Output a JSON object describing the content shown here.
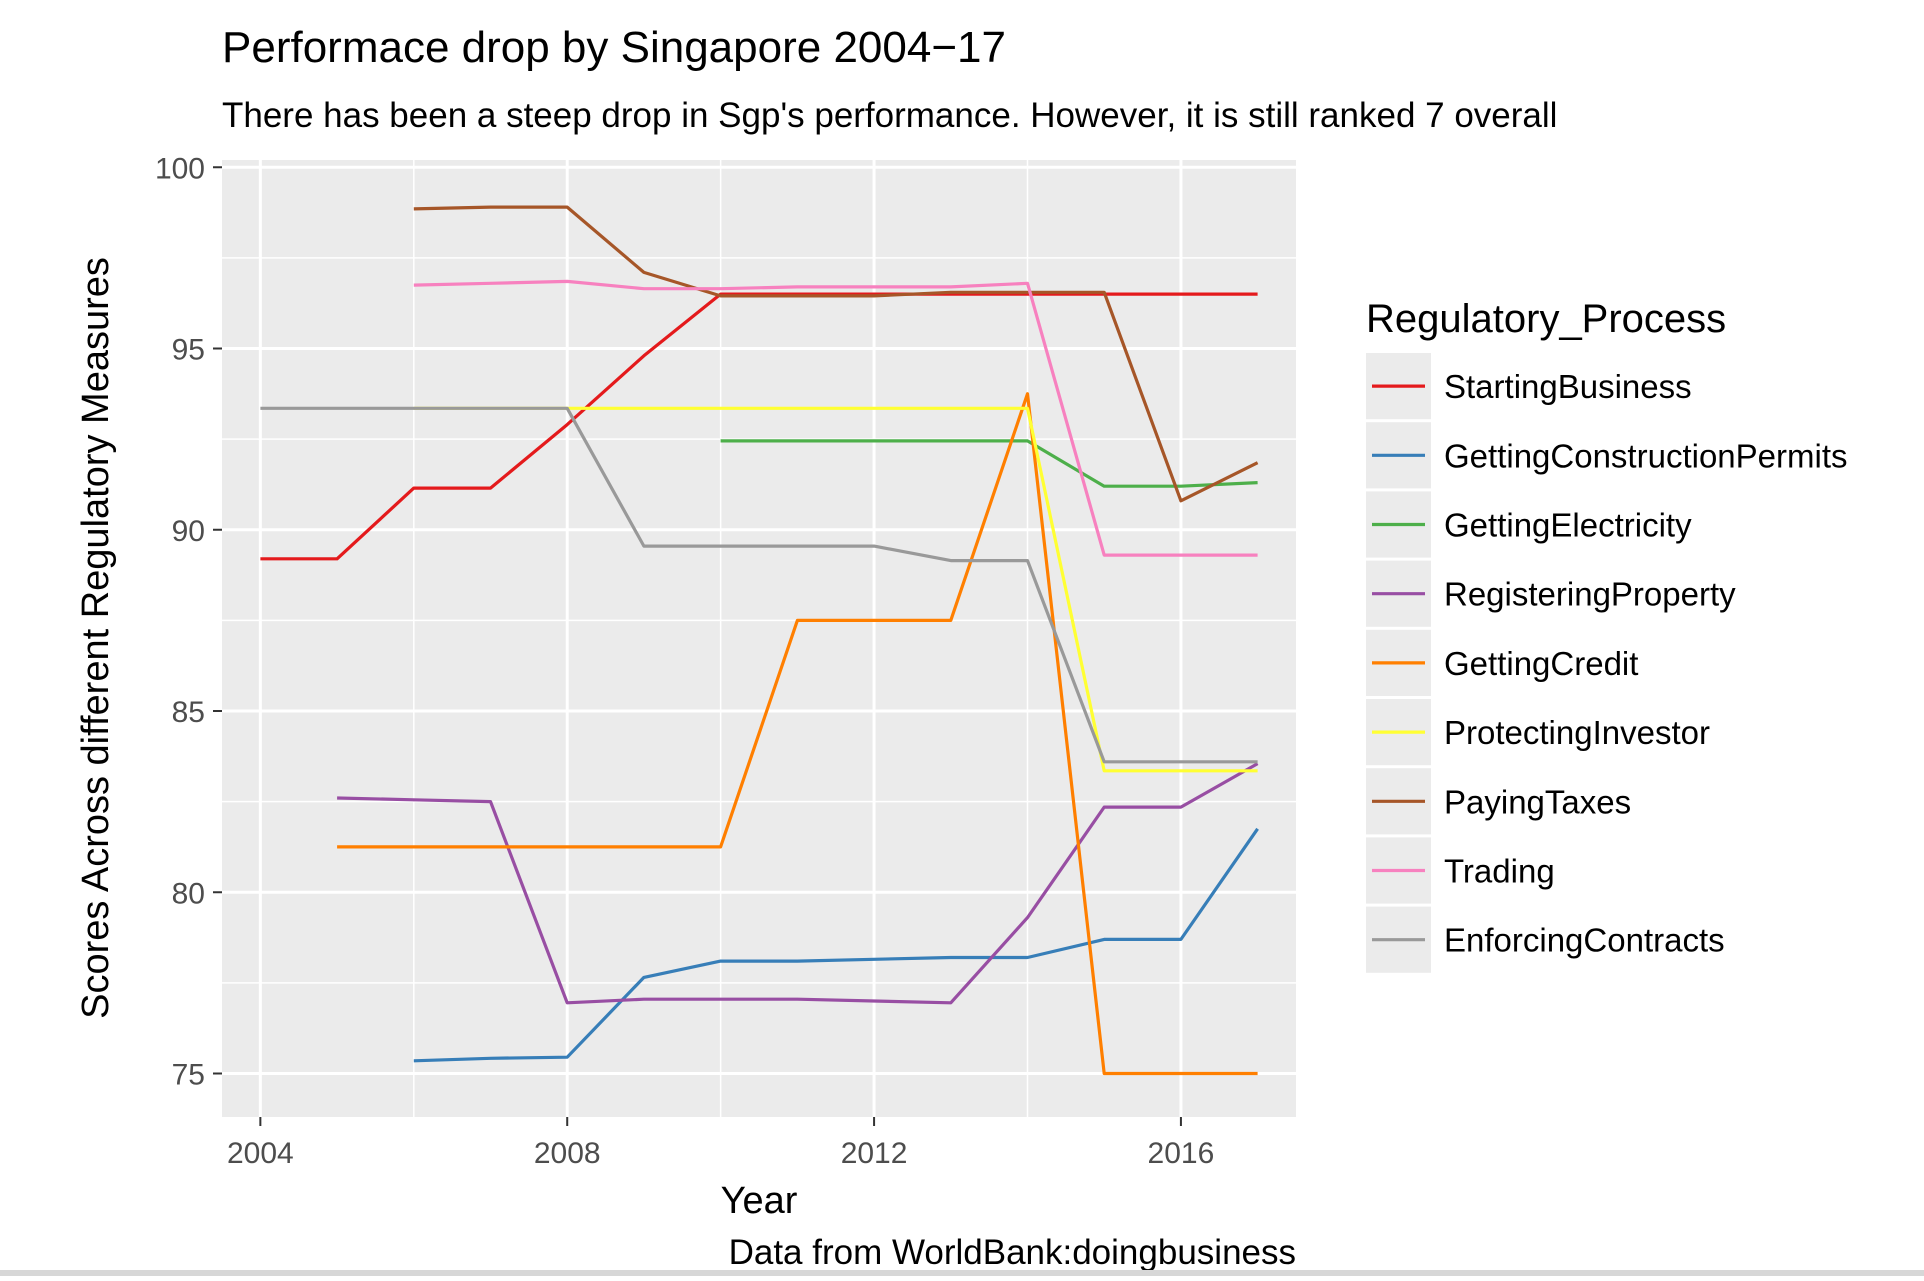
{
  "chart_data": {
    "type": "line",
    "title": "Performace drop by Singapore 2004−17",
    "subtitle": "There has been a steep drop in Sgp's performance. However, it is still ranked 7 overall",
    "xlabel": "Year",
    "ylabel": "Scores Across different Regulatory Measures",
    "caption": "Data from WorldBank:doingbusiness",
    "legend_title": "Regulatory_Process",
    "legend_position": "right",
    "grid": true,
    "xlim": [
      2003.5,
      2017.5
    ],
    "ylim": [
      73.8,
      100.2
    ],
    "xticks": [
      2004,
      2008,
      2012,
      2016
    ],
    "xtick_labels": [
      "2004",
      "2008",
      "2012",
      "2016"
    ],
    "yticks": [
      75,
      80,
      85,
      90,
      95,
      100
    ],
    "ytick_labels": [
      "75",
      "80",
      "85",
      "90",
      "95",
      "100"
    ],
    "series": [
      {
        "name": "StartingBusiness",
        "color": "#e41a1c",
        "points": [
          [
            2004,
            89.2
          ],
          [
            2005,
            89.2
          ],
          [
            2006,
            91.15
          ],
          [
            2007,
            91.15
          ],
          [
            2008,
            92.9
          ],
          [
            2009,
            94.8
          ],
          [
            2010,
            96.5
          ],
          [
            2011,
            96.5
          ],
          [
            2012,
            96.5
          ],
          [
            2013,
            96.5
          ],
          [
            2014,
            96.5
          ],
          [
            2015,
            96.5
          ],
          [
            2016,
            96.5
          ],
          [
            2017,
            96.5
          ]
        ]
      },
      {
        "name": "GettingConstructionPermits",
        "color": "#377eb8",
        "points": [
          [
            2006,
            75.35
          ],
          [
            2007,
            75.42
          ],
          [
            2008,
            75.45
          ],
          [
            2009,
            77.65
          ],
          [
            2010,
            78.1
          ],
          [
            2011,
            78.1
          ],
          [
            2012,
            78.15
          ],
          [
            2013,
            78.2
          ],
          [
            2014,
            78.2
          ],
          [
            2015,
            78.7
          ],
          [
            2016,
            78.7
          ],
          [
            2017,
            81.75
          ]
        ]
      },
      {
        "name": "GettingElectricity",
        "color": "#4daf4a",
        "points": [
          [
            2010,
            92.45
          ],
          [
            2011,
            92.45
          ],
          [
            2012,
            92.45
          ],
          [
            2013,
            92.45
          ],
          [
            2014,
            92.45
          ],
          [
            2015,
            91.2
          ],
          [
            2016,
            91.2
          ],
          [
            2017,
            91.3
          ]
        ]
      },
      {
        "name": "RegisteringProperty",
        "color": "#984ea3",
        "points": [
          [
            2005,
            82.6
          ],
          [
            2006,
            82.55
          ],
          [
            2007,
            82.5
          ],
          [
            2008,
            76.95
          ],
          [
            2009,
            77.05
          ],
          [
            2010,
            77.05
          ],
          [
            2011,
            77.05
          ],
          [
            2012,
            77.0
          ],
          [
            2013,
            76.95
          ],
          [
            2014,
            79.3
          ],
          [
            2015,
            82.35
          ],
          [
            2016,
            82.35
          ],
          [
            2017,
            83.55
          ]
        ]
      },
      {
        "name": "GettingCredit",
        "color": "#ff7f00",
        "points": [
          [
            2005,
            81.25
          ],
          [
            2006,
            81.25
          ],
          [
            2007,
            81.25
          ],
          [
            2008,
            81.25
          ],
          [
            2009,
            81.25
          ],
          [
            2010,
            81.25
          ],
          [
            2011,
            87.5
          ],
          [
            2012,
            87.5
          ],
          [
            2013,
            87.5
          ],
          [
            2014,
            93.75
          ],
          [
            2015,
            75.0
          ],
          [
            2016,
            75.0
          ],
          [
            2017,
            75.0
          ]
        ]
      },
      {
        "name": "ProtectingInvestor",
        "color": "#ffff33",
        "points": [
          [
            2006,
            93.35
          ],
          [
            2007,
            93.35
          ],
          [
            2008,
            93.35
          ],
          [
            2009,
            93.35
          ],
          [
            2010,
            93.35
          ],
          [
            2011,
            93.35
          ],
          [
            2012,
            93.35
          ],
          [
            2013,
            93.35
          ],
          [
            2014,
            93.35
          ],
          [
            2015,
            83.35
          ],
          [
            2016,
            83.35
          ],
          [
            2017,
            83.35
          ]
        ]
      },
      {
        "name": "PayingTaxes",
        "color": "#a65628",
        "points": [
          [
            2006,
            98.85
          ],
          [
            2007,
            98.9
          ],
          [
            2008,
            98.9
          ],
          [
            2009,
            97.1
          ],
          [
            2010,
            96.45
          ],
          [
            2011,
            96.45
          ],
          [
            2012,
            96.45
          ],
          [
            2013,
            96.55
          ],
          [
            2014,
            96.55
          ],
          [
            2015,
            96.55
          ],
          [
            2016,
            90.8
          ],
          [
            2017,
            91.85
          ]
        ]
      },
      {
        "name": "Trading",
        "color": "#f781bf",
        "points": [
          [
            2006,
            96.75
          ],
          [
            2007,
            96.8
          ],
          [
            2008,
            96.85
          ],
          [
            2009,
            96.65
          ],
          [
            2010,
            96.65
          ],
          [
            2011,
            96.7
          ],
          [
            2012,
            96.7
          ],
          [
            2013,
            96.7
          ],
          [
            2014,
            96.8
          ],
          [
            2015,
            89.3
          ],
          [
            2016,
            89.3
          ],
          [
            2017,
            89.3
          ]
        ]
      },
      {
        "name": "EnforcingContracts",
        "color": "#999999",
        "points": [
          [
            2004,
            93.35
          ],
          [
            2005,
            93.35
          ],
          [
            2006,
            93.35
          ],
          [
            2007,
            93.35
          ],
          [
            2008,
            93.35
          ],
          [
            2009,
            89.55
          ],
          [
            2010,
            89.55
          ],
          [
            2011,
            89.55
          ],
          [
            2012,
            89.55
          ],
          [
            2013,
            89.15
          ],
          [
            2014,
            89.15
          ],
          [
            2015,
            83.6
          ],
          [
            2016,
            83.6
          ],
          [
            2017,
            83.6
          ]
        ]
      }
    ]
  }
}
